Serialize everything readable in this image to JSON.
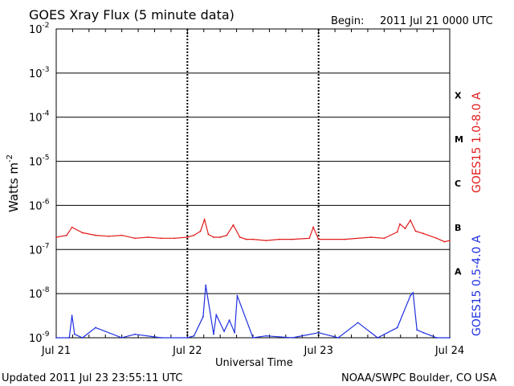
{
  "chart_data": {
    "type": "line",
    "title": "GOES Xray Flux (5 minute data)",
    "begin_label": "Begin:",
    "begin_value": "2011 Jul 21 0000 UTC",
    "xlabel": "Universal Time",
    "ylabel": "Watts m",
    "ylabel_exponent": "-2",
    "y_scale": "log",
    "ylim": [
      1e-09,
      0.01
    ],
    "xlim": [
      "2011 Jul 21 0000",
      "2011 Jul 24 0000"
    ],
    "x_tick_labels": [
      "Jul 21",
      "Jul 22",
      "Jul 23",
      "Jul 24"
    ],
    "y_tick_labels": [
      {
        "base": "10",
        "exp": "-9",
        "value": 1e-09
      },
      {
        "base": "10",
        "exp": "-8",
        "value": 1e-08
      },
      {
        "base": "10",
        "exp": "-7",
        "value": 1e-07
      },
      {
        "base": "10",
        "exp": "-6",
        "value": 1e-06
      },
      {
        "base": "10",
        "exp": "-5",
        "value": 1e-05
      },
      {
        "base": "10",
        "exp": "-4",
        "value": 0.0001
      },
      {
        "base": "10",
        "exp": "-3",
        "value": 0.001
      },
      {
        "base": "10",
        "exp": "-2",
        "value": 0.01
      }
    ],
    "flare_classes": [
      {
        "label": "X",
        "range": [
          0.0001,
          0.001
        ]
      },
      {
        "label": "M",
        "range": [
          1e-05,
          0.0001
        ]
      },
      {
        "label": "C",
        "range": [
          1e-06,
          1e-05
        ]
      },
      {
        "label": "B",
        "range": [
          1e-07,
          1e-06
        ]
      },
      {
        "label": "A",
        "range": [
          1e-08,
          1e-07
        ]
      }
    ],
    "series": [
      {
        "name": "GOES15 1.0-8.0 A",
        "color": "#e11b1b",
        "x_days": [
          0.0,
          0.08,
          0.12,
          0.2,
          0.3,
          0.4,
          0.5,
          0.6,
          0.7,
          0.8,
          0.9,
          1.0,
          1.05,
          1.1,
          1.13,
          1.16,
          1.2,
          1.25,
          1.3,
          1.35,
          1.4,
          1.45,
          1.5,
          1.6,
          1.7,
          1.8,
          1.93,
          1.96,
          2.0,
          2.2,
          2.4,
          2.5,
          2.6,
          2.62,
          2.66,
          2.7,
          2.74,
          2.8,
          2.9,
          2.96,
          3.0
        ],
        "y": [
          1.9e-07,
          2.1e-07,
          3.2e-07,
          2.4e-07,
          2.1e-07,
          2e-07,
          2.1e-07,
          1.8e-07,
          1.9e-07,
          1.8e-07,
          1.8e-07,
          1.9e-07,
          2.1e-07,
          2.6e-07,
          4.8e-07,
          2.2e-07,
          1.9e-07,
          1.9e-07,
          2.1e-07,
          3.6e-07,
          1.9e-07,
          1.7e-07,
          1.7e-07,
          1.6e-07,
          1.7e-07,
          1.7e-07,
          1.8e-07,
          3.2e-07,
          1.7e-07,
          1.7e-07,
          1.9e-07,
          1.8e-07,
          2.5e-07,
          3.8e-07,
          3e-07,
          4.6e-07,
          2.6e-07,
          2.3e-07,
          1.8e-07,
          1.5e-07,
          1.6e-07
        ]
      },
      {
        "name": "GOES15 0.5-4.0 A",
        "color": "#1f2fe0",
        "x_days": [
          0.0,
          0.1,
          0.12,
          0.14,
          0.2,
          0.3,
          0.5,
          0.6,
          0.8,
          1.0,
          1.05,
          1.12,
          1.14,
          1.2,
          1.22,
          1.28,
          1.32,
          1.36,
          1.38,
          1.5,
          1.6,
          1.8,
          2.0,
          2.15,
          2.3,
          2.45,
          2.6,
          2.7,
          2.72,
          2.75,
          2.8,
          2.9,
          3.0
        ],
        "y": [
          1e-09,
          1e-09,
          3.2e-09,
          1.2e-09,
          1e-09,
          1.7e-09,
          1e-09,
          1.2e-09,
          1e-09,
          1e-09,
          1.1e-09,
          3e-09,
          1.55e-08,
          1.2e-09,
          3.3e-09,
          1.4e-09,
          2.5e-09,
          1.3e-09,
          9e-09,
          1e-09,
          1.1e-09,
          1e-09,
          1.3e-09,
          1e-09,
          2.2e-09,
          1e-09,
          1.7e-09,
          9e-09,
          1.05e-08,
          1.5e-09,
          1.3e-09,
          1e-09,
          1e-09
        ]
      }
    ]
  },
  "footer": {
    "updated": "Updated 2011 Jul 23 23:55:11 UTC",
    "source": "NOAA/SWPC Boulder, CO USA"
  }
}
